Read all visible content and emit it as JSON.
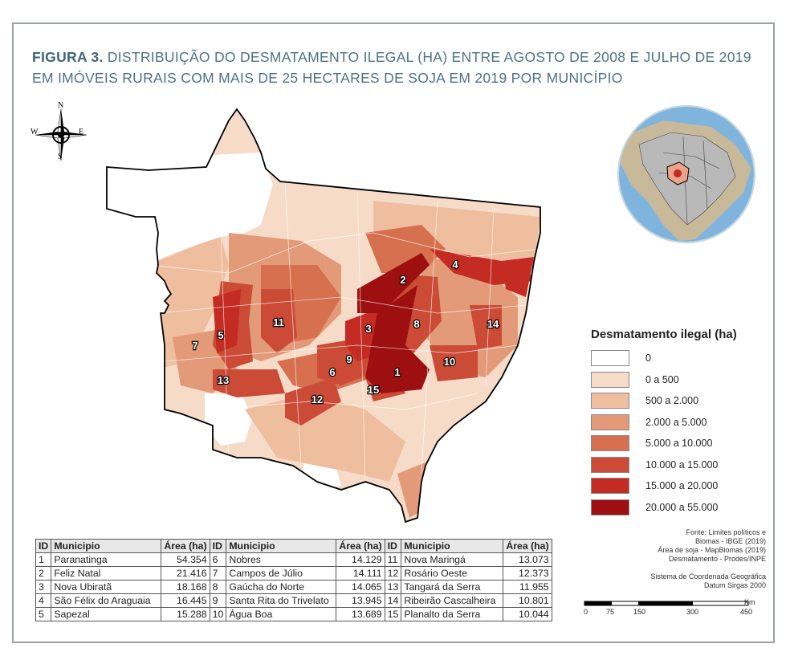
{
  "figure": {
    "label": "FIGURA 3.",
    "title": "DISTRIBUIÇÃO DO DESMATAMENTO ILEGAL (HA) ENTRE AGOSTO DE 2008 E JULHO DE 2019 EM IMÓVEIS RURAIS COM MAIS DE 25 HECTARES DE SOJA EM 2019 POR MUNICÍPIO"
  },
  "compass": {
    "n": "N",
    "s": "S",
    "e": "E",
    "w": "W"
  },
  "legend": {
    "title": "Desmatamento ilegal (ha)",
    "classes": [
      {
        "label": "0",
        "color": "#ffffff"
      },
      {
        "label": "0 a 500",
        "color": "#f6dcc8"
      },
      {
        "label": "500 a 2.000",
        "color": "#efbe9f"
      },
      {
        "label": "2.000 a  5.000",
        "color": "#e29a79"
      },
      {
        "label": "5.000 a 10.000",
        "color": "#d6704f"
      },
      {
        "label": "10.000 a 15.000",
        "color": "#cb4b37"
      },
      {
        "label": "15.000 a 20.000",
        "color": "#c42b22"
      },
      {
        "label": "20.000 a 55.000",
        "color": "#9d0f10"
      }
    ]
  },
  "map_labels": [
    "1",
    "2",
    "3",
    "4",
    "5",
    "6",
    "7",
    "8",
    "9",
    "10",
    "11",
    "12",
    "13",
    "14",
    "15"
  ],
  "table": {
    "headers": [
      "ID",
      "Municipio",
      "Área (ha)"
    ],
    "columns": [
      [
        {
          "id": "1",
          "municipio": "Paranatinga",
          "area": "54.354"
        },
        {
          "id": "2",
          "municipio": "Feliz Natal",
          "area": "21.416"
        },
        {
          "id": "3",
          "municipio": "Nova Ubiratã",
          "area": "18.168"
        },
        {
          "id": "4",
          "municipio": "São Félix do Araguaia",
          "area": "16.445"
        },
        {
          "id": "5",
          "municipio": "Sapezal",
          "area": "15.288"
        }
      ],
      [
        {
          "id": "6",
          "municipio": "Nobres",
          "area": "14.129"
        },
        {
          "id": "7",
          "municipio": "Campos de Júlio",
          "area": "14.111"
        },
        {
          "id": "8",
          "municipio": "Gaúcha do Norte",
          "area": "14.065"
        },
        {
          "id": "9",
          "municipio": "Santa Rita do Trivelato",
          "area": "13.945"
        },
        {
          "id": "10",
          "municipio": "Água Boa",
          "area": "13.689"
        }
      ],
      [
        {
          "id": "11",
          "municipio": "Nova Maringá",
          "area": "13.073"
        },
        {
          "id": "12",
          "municipio": "Rosário Oeste",
          "area": "12.373"
        },
        {
          "id": "13",
          "municipio": "Tangará da Serra",
          "area": "11.955"
        },
        {
          "id": "14",
          "municipio": "Ribeirão Cascalheira",
          "area": "10.801"
        },
        {
          "id": "15",
          "municipio": "Planalto da Serra",
          "area": "10.044"
        }
      ]
    ]
  },
  "source": {
    "lines": [
      "Fonte: Limites políticos e",
      "Biomas - IBGE (2019)",
      "Área de soja - MapBiomas (2019)",
      "Desmatamento - Prodes/INPE",
      "",
      "Sistema de Coordenada Geográfica",
      "Datum Sirgas 2000"
    ]
  },
  "scale": {
    "unit": "Km",
    "ticks": [
      "0",
      "75",
      "150",
      "300",
      "450"
    ]
  }
}
